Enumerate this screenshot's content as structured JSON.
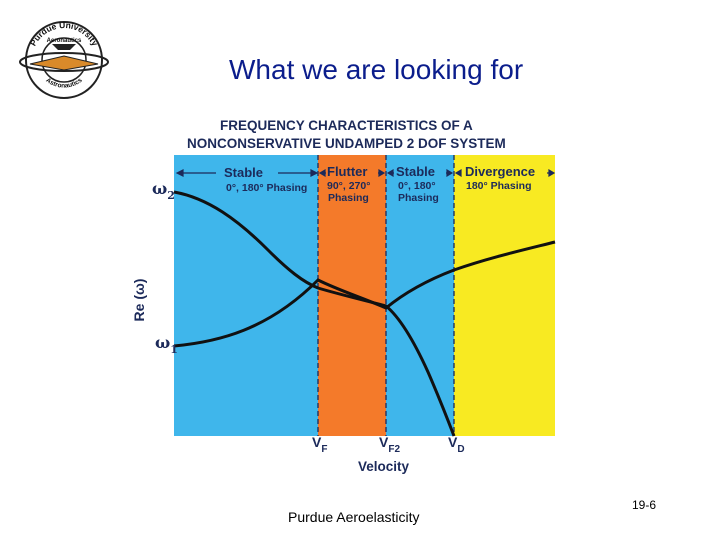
{
  "slide": {
    "title": "What we are looking for",
    "footer": "Purdue Aeroelasticity",
    "page_number": "19-6"
  },
  "logo": {
    "top_text": "Purdue University",
    "mid_text": "Aeronautics",
    "bottom_text": "Astronautics"
  },
  "figure": {
    "title_line1": "FREQUENCY  CHARACTERISTICS  OF  A",
    "title_line2": "NONCONSERVATIVE  UNDAMPED  2  DOF  SYSTEM",
    "ylabel": "Re (ω)",
    "omega2": "ω",
    "omega2_sub": "2",
    "omega1": "ω",
    "omega1_sub": "1",
    "xlabel": "Velocity",
    "vf": "V",
    "vf_sub": "F",
    "vf2": "V",
    "vf2_sub": "F2",
    "vd": "V",
    "vd_sub": "D",
    "regions": {
      "stable1_title": "Stable",
      "stable1_sub": "0°, 180° Phasing",
      "flutter_title": "Flutter",
      "flutter_sub1": "90°, 270°",
      "flutter_sub2": "Phasing",
      "stable2_title": "Stable",
      "stable2_sub1": "0°, 180°",
      "stable2_sub2": "Phasing",
      "divergence_title": "Divergence",
      "divergence_sub": "180° Phasing"
    },
    "colors": {
      "stable": "#3fb6eb",
      "flutter": "#f47a2a",
      "divergence": "#f8ea22",
      "text": "#1c2a5a"
    }
  }
}
